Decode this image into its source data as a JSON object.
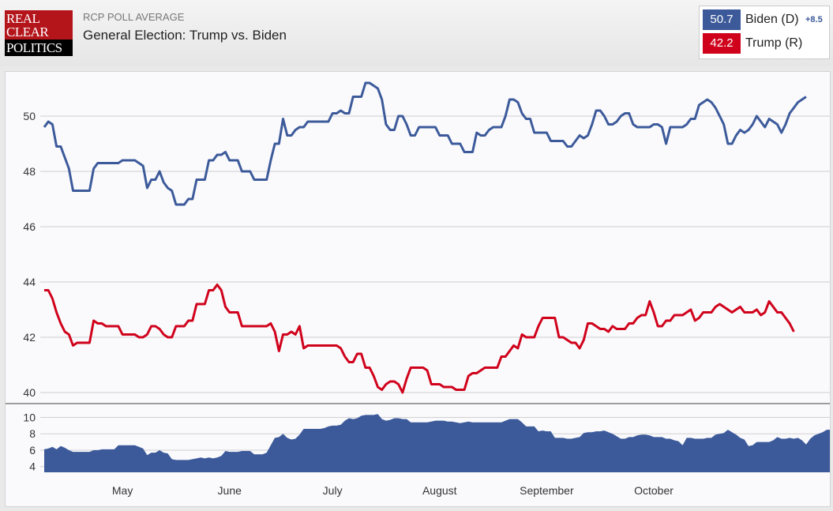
{
  "header": {
    "logo_lines": [
      "REAL",
      "CLEAR",
      "POLITICS"
    ],
    "kicker": "RCP POLL AVERAGE",
    "title": "General Election: Trump vs. Biden"
  },
  "legend": {
    "items": [
      {
        "value": "50.7",
        "name": "Biden (D)",
        "spread": "+8.5",
        "color": "#3c5a9a"
      },
      {
        "value": "42.2",
        "name": "Trump (R)",
        "color": "#d0021b"
      }
    ]
  },
  "colors": {
    "biden": "#3c5a9a",
    "trump": "#d0021b",
    "grid": "#cfcfcf",
    "area": "#3c5a9a"
  },
  "chart_data": [
    {
      "type": "line",
      "title": "General Election: Trump vs. Biden",
      "xlabel": "",
      "ylabel": "",
      "ylim": [
        39.6,
        51.6
      ],
      "y_ticks": [
        40,
        42,
        44,
        46,
        48,
        50
      ],
      "x_ticks": [
        "May",
        "June",
        "July",
        "August",
        "September",
        "October"
      ],
      "x_tick_index": [
        19,
        45,
        70,
        96,
        122,
        148
      ],
      "grid": true,
      "series": [
        {
          "name": "Biden (D)",
          "values": [
            49.6,
            49.8,
            49.7,
            48.9,
            48.9,
            48.5,
            48.1,
            47.3,
            47.3,
            47.3,
            47.3,
            47.3,
            48.1,
            48.3,
            48.3,
            48.3,
            48.3,
            48.3,
            48.3,
            48.4,
            48.4,
            48.4,
            48.4,
            48.3,
            48.2,
            47.4,
            47.7,
            47.7,
            48,
            47.6,
            47.4,
            47.3,
            46.8,
            46.8,
            46.8,
            47,
            47,
            47.7,
            47.7,
            47.7,
            48.4,
            48.4,
            48.6,
            48.6,
            48.7,
            48.4,
            48.4,
            48.4,
            48,
            48,
            48,
            47.7,
            47.7,
            47.7,
            47.7,
            48.4,
            49,
            49,
            49.9,
            49.3,
            49.3,
            49.5,
            49.6,
            49.6,
            49.8,
            49.8,
            49.8,
            49.8,
            49.8,
            49.8,
            50.1,
            50.1,
            50.2,
            50.1,
            50.1,
            50.7,
            50.7,
            50.7,
            51.2,
            51.2,
            51.1,
            51,
            50.6,
            49.7,
            49.5,
            49.5,
            50,
            50,
            49.7,
            49.3,
            49.3,
            49.6,
            49.6,
            49.6,
            49.6,
            49.6,
            49.3,
            49.3,
            49.3,
            49,
            49,
            49,
            48.7,
            48.7,
            48.7,
            49.4,
            49.3,
            49.3,
            49.5,
            49.6,
            49.6,
            49.6,
            50,
            50.6,
            50.6,
            50.5,
            50.1,
            49.9,
            49.9,
            49.4,
            49.4,
            49.4,
            49.4,
            49.1,
            49.1,
            49.1,
            49.1,
            48.9,
            48.9,
            49.1,
            49.3,
            49.2,
            49.3,
            49.7,
            50.2,
            50.2,
            50,
            49.7,
            49.7,
            49.8,
            50,
            50.1,
            50.1,
            49.7,
            49.6,
            49.6,
            49.6,
            49.6,
            49.7,
            49.7,
            49.6,
            49,
            49.6,
            49.6,
            49.6,
            49.6,
            49.7,
            49.9,
            49.9,
            50.4,
            50.5,
            50.6,
            50.5,
            50.3,
            50,
            49.7,
            49,
            49,
            49.3,
            49.5,
            49.4,
            49.5,
            49.7,
            50,
            49.8,
            49.6,
            49.9,
            49.8,
            49.7,
            49.4,
            49.7,
            50.1,
            50.3,
            50.5,
            50.6,
            50.7
          ]
        },
        {
          "name": "Trump (R)",
          "values": [
            43.7,
            43.7,
            43.4,
            42.9,
            42.5,
            42.2,
            42.1,
            41.7,
            41.8,
            41.8,
            41.8,
            41.8,
            42.6,
            42.5,
            42.5,
            42.4,
            42.4,
            42.4,
            42.4,
            42.1,
            42.1,
            42.1,
            42.1,
            42,
            42,
            42.1,
            42.4,
            42.4,
            42.3,
            42.1,
            42,
            42,
            42.4,
            42.4,
            42.4,
            42.6,
            42.6,
            43.2,
            43.2,
            43.2,
            43.7,
            43.7,
            43.9,
            43.7,
            43.1,
            42.9,
            42.9,
            42.9,
            42.4,
            42.4,
            42.4,
            42.4,
            42.4,
            42.4,
            42.4,
            42.5,
            42.2,
            41.5,
            42.1,
            42.1,
            42.2,
            42.1,
            42.4,
            41.6,
            41.7,
            41.7,
            41.7,
            41.7,
            41.7,
            41.7,
            41.7,
            41.7,
            41.6,
            41.3,
            41.1,
            41.1,
            41.4,
            41.4,
            40.9,
            40.9,
            40.6,
            40.2,
            40.1,
            40.3,
            40.4,
            40.4,
            40.3,
            40,
            40.5,
            40.9,
            40.9,
            40.9,
            40.9,
            40.8,
            40.3,
            40.3,
            40.3,
            40.2,
            40.2,
            40.2,
            40.1,
            40.1,
            40.1,
            40.6,
            40.7,
            40.7,
            40.8,
            40.9,
            40.9,
            40.9,
            40.9,
            41.3,
            41.3,
            41.5,
            41.7,
            41.6,
            42.1,
            42,
            42,
            42,
            42.4,
            42.7,
            42.7,
            42.7,
            42.7,
            42,
            42,
            41.9,
            41.8,
            41.8,
            41.6,
            41.9,
            42.5,
            42.5,
            42.4,
            42.3,
            42.3,
            42.2,
            42.4,
            42.3,
            42.3,
            42.3,
            42.5,
            42.5,
            42.7,
            42.8,
            42.8,
            43.3,
            42.9,
            42.4,
            42.4,
            42.6,
            42.6,
            42.8,
            42.8,
            42.8,
            42.9,
            43,
            42.6,
            42.7,
            42.9,
            42.9,
            42.9,
            43.1,
            43.2,
            43.1,
            43,
            42.9,
            43,
            43.1,
            42.9,
            42.9,
            42.9,
            43,
            42.8,
            42.9,
            43.3,
            43.1,
            42.9,
            42.9,
            42.7,
            42.5,
            42.2
          ]
        }
      ]
    },
    {
      "type": "area",
      "title": "",
      "xlabel": "",
      "ylabel": "",
      "ylim": [
        3.3,
        11.3
      ],
      "y_ticks": [
        4,
        6,
        8,
        10
      ],
      "grid": true,
      "series": [
        {
          "name": "",
          "values": [
            6.1,
            6.2,
            6.4,
            6.1,
            6.5,
            6.3,
            6,
            5.8,
            5.8,
            5.8,
            5.8,
            5.8,
            6,
            6,
            6.1,
            6.1,
            6.1,
            6.1,
            6.6,
            6.6,
            6.6,
            6.6,
            6.6,
            6.4,
            6.2,
            5.4,
            5.7,
            5.7,
            6,
            5.7,
            5.6,
            4.9,
            4.8,
            4.8,
            4.8,
            4.8,
            4.9,
            5,
            5.1,
            5,
            5.1,
            5,
            5.1,
            5.3,
            5.9,
            5.8,
            5.8,
            5.8,
            5.9,
            5.9,
            5.9,
            5.5,
            5.5,
            5.5,
            5.7,
            6.6,
            7.5,
            7.6,
            8,
            7.5,
            7.3,
            7.4,
            7.9,
            8.6,
            8.6,
            8.6,
            8.6,
            8.6,
            8.7,
            8.9,
            9,
            9,
            9.1,
            9.6,
            9.9,
            9.8,
            9.9,
            10.2,
            10.3,
            10.3,
            10.3,
            10.4,
            9.8,
            9.6,
            9.7,
            9.9,
            9.9,
            9.8,
            9.8,
            9.4,
            9.4,
            9.4,
            9.4,
            9.4,
            9.5,
            9.6,
            9.6,
            9.6,
            9.5,
            9.5,
            9.4,
            9.3,
            9.4,
            9.5,
            9.4,
            9.4,
            9.4,
            9.4,
            9.4,
            9.4,
            9.4,
            9.4,
            9.6,
            9.8,
            9.8,
            9.8,
            9.4,
            8.9,
            8.9,
            8.9,
            8.3,
            8.4,
            8.3,
            8.3,
            7.5,
            7.5,
            7.5,
            7.4,
            7.4,
            7.5,
            7.6,
            8.1,
            8.2,
            8.2,
            8.3,
            8.3,
            8.4,
            8.2,
            8,
            7.7,
            7.4,
            7.4,
            7.6,
            7.6,
            7.8,
            7.9,
            7.9,
            7.8,
            7.6,
            7.6,
            7.6,
            7.4,
            7.4,
            7.2,
            7.1,
            6.6,
            7.5,
            7.5,
            7.4,
            7.4,
            7.4,
            7.5,
            7.5,
            7.9,
            8,
            8.1,
            8.5,
            8.2,
            7.9,
            7.5,
            7.3,
            6.5,
            6.6,
            7,
            7,
            7,
            7,
            7.2,
            7.6,
            7.4,
            7.4,
            7.5,
            7.4,
            7.5,
            7.2,
            6.7,
            7.4,
            7.8,
            8,
            8.2,
            8.5,
            8.5
          ]
        }
      ]
    }
  ]
}
